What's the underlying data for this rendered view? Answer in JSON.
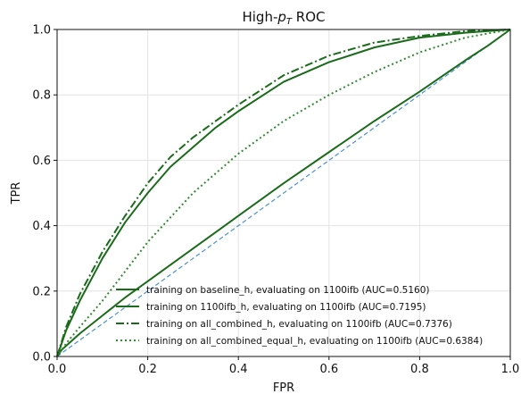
{
  "chart_data": {
    "type": "line",
    "title": "High-",
    "title_math": "p",
    "title_sub": "T",
    "title_suffix": " ROC",
    "xlabel": "FPR",
    "ylabel": "TPR",
    "xlim": [
      0.0,
      1.0
    ],
    "ylim": [
      0.0,
      1.0
    ],
    "xticks": [
      "0.0",
      "0.2",
      "0.4",
      "0.6",
      "0.8",
      "1.0"
    ],
    "yticks": [
      "0.0",
      "0.2",
      "0.4",
      "0.6",
      "0.8",
      "1.0"
    ],
    "grid": true,
    "legend_position": "lower-right",
    "series": [
      {
        "name": "training on baseline_h, evaluating on 1100ifb (AUC=0.5160)",
        "color": "#1a6b1a",
        "style": "solid",
        "x": [
          0,
          0.01,
          0.05,
          0.1,
          0.15,
          0.2,
          0.3,
          0.4,
          0.5,
          0.6,
          0.7,
          0.8,
          0.9,
          0.95,
          1.0
        ],
        "y": [
          0,
          0.02,
          0.07,
          0.125,
          0.18,
          0.23,
          0.33,
          0.43,
          0.53,
          0.625,
          0.72,
          0.81,
          0.905,
          0.95,
          1.0
        ]
      },
      {
        "name": "training on 1100ifb_h, evaluating on 1100ifb (AUC=0.7195)",
        "color": "#1a6b1a",
        "style": "solid",
        "x": [
          0,
          0.02,
          0.05,
          0.1,
          0.15,
          0.2,
          0.25,
          0.3,
          0.35,
          0.4,
          0.5,
          0.6,
          0.7,
          0.8,
          0.9,
          1.0
        ],
        "y": [
          0,
          0.08,
          0.17,
          0.3,
          0.41,
          0.5,
          0.58,
          0.64,
          0.7,
          0.75,
          0.84,
          0.9,
          0.945,
          0.975,
          0.99,
          1.0
        ]
      },
      {
        "name": "training on all_combined_h, evaluating on 1100ifb (AUC=0.7376)",
        "color": "#1a6b1a",
        "style": "dashdot",
        "x": [
          0,
          0.02,
          0.05,
          0.1,
          0.15,
          0.2,
          0.25,
          0.3,
          0.35,
          0.4,
          0.5,
          0.6,
          0.7,
          0.8,
          0.9,
          1.0
        ],
        "y": [
          0,
          0.09,
          0.19,
          0.32,
          0.43,
          0.53,
          0.61,
          0.67,
          0.72,
          0.77,
          0.86,
          0.92,
          0.96,
          0.98,
          0.995,
          1.0
        ]
      },
      {
        "name": "training on all_combined_equal_h, evaluating on 1100ifb (AUC=0.6384)",
        "color": "#2e8b2e",
        "style": "dotted",
        "x": [
          0,
          0.02,
          0.05,
          0.1,
          0.15,
          0.2,
          0.3,
          0.4,
          0.5,
          0.6,
          0.7,
          0.8,
          0.9,
          1.0
        ],
        "y": [
          0,
          0.04,
          0.09,
          0.17,
          0.26,
          0.35,
          0.5,
          0.62,
          0.72,
          0.8,
          0.87,
          0.93,
          0.975,
          1.0
        ]
      }
    ],
    "reference_line": {
      "color": "#4a90d9",
      "style": "dashed",
      "x": [
        0,
        1
      ],
      "y": [
        0,
        1
      ]
    }
  }
}
